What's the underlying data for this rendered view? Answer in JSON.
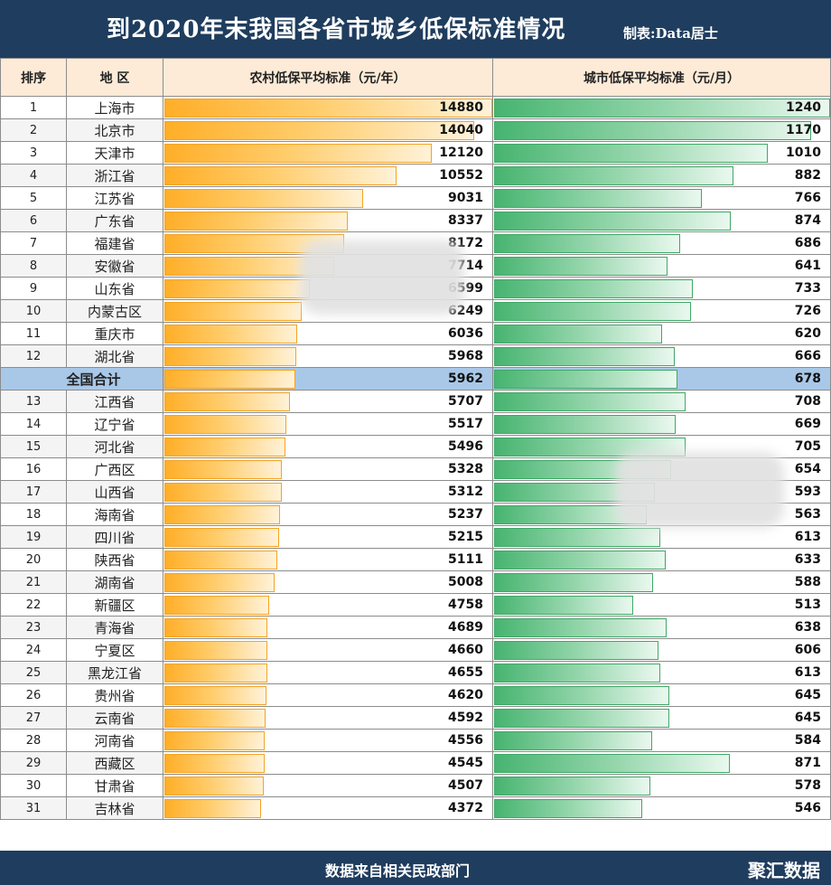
{
  "header": {
    "title": "到2020年末我国各省市城乡低保标准情况",
    "maker": "制表:Data居士"
  },
  "columns": {
    "rank": "排序",
    "region": "地 区",
    "rural": "农村低保平均标准（元/年）",
    "urban": "城市低保平均标准（元/月）"
  },
  "footer": {
    "source": "数据来自相关民政部门",
    "brand": "聚汇数据"
  },
  "colors": {
    "header_bg": "#1f3d5e",
    "column_header_bg": "#fdebd7",
    "rural_bar": "#ffae28",
    "urban_bar": "#47b470",
    "total_row": "#a9c8e8"
  },
  "chart_data": {
    "type": "table",
    "title": "到2020年末我国各省市城乡低保标准情况",
    "rural_max": 14880,
    "urban_max": 1240,
    "rows": [
      {
        "rank": "1",
        "name": "上海市",
        "rural": 14880,
        "urban": 1240
      },
      {
        "rank": "2",
        "name": "北京市",
        "rural": 14040,
        "urban": 1170
      },
      {
        "rank": "3",
        "name": "天津市",
        "rural": 12120,
        "urban": 1010
      },
      {
        "rank": "4",
        "name": "浙江省",
        "rural": 10552,
        "urban": 882
      },
      {
        "rank": "5",
        "name": "江苏省",
        "rural": 9031,
        "urban": 766
      },
      {
        "rank": "6",
        "name": "广东省",
        "rural": 8337,
        "urban": 874
      },
      {
        "rank": "7",
        "name": "福建省",
        "rural": 8172,
        "urban": 686
      },
      {
        "rank": "8",
        "name": "安徽省",
        "rural": 7714,
        "urban": 641
      },
      {
        "rank": "9",
        "name": "山东省",
        "rural": 6599,
        "urban": 733
      },
      {
        "rank": "10",
        "name": "内蒙古区",
        "rural": 6249,
        "urban": 726
      },
      {
        "rank": "11",
        "name": "重庆市",
        "rural": 6036,
        "urban": 620
      },
      {
        "rank": "12",
        "name": "湖北省",
        "rural": 5968,
        "urban": 666
      },
      {
        "rank": "",
        "name": "全国合计",
        "rural": 5962,
        "urban": 678,
        "total": true
      },
      {
        "rank": "13",
        "name": "江西省",
        "rural": 5707,
        "urban": 708
      },
      {
        "rank": "14",
        "name": "辽宁省",
        "rural": 5517,
        "urban": 669
      },
      {
        "rank": "15",
        "name": "河北省",
        "rural": 5496,
        "urban": 705
      },
      {
        "rank": "16",
        "name": "广西区",
        "rural": 5328,
        "urban": 654
      },
      {
        "rank": "17",
        "name": "山西省",
        "rural": 5312,
        "urban": 593
      },
      {
        "rank": "18",
        "name": "海南省",
        "rural": 5237,
        "urban": 563
      },
      {
        "rank": "19",
        "name": "四川省",
        "rural": 5215,
        "urban": 613
      },
      {
        "rank": "20",
        "name": "陕西省",
        "rural": 5111,
        "urban": 633
      },
      {
        "rank": "21",
        "name": "湖南省",
        "rural": 5008,
        "urban": 588
      },
      {
        "rank": "22",
        "name": "新疆区",
        "rural": 4758,
        "urban": 513
      },
      {
        "rank": "23",
        "name": "青海省",
        "rural": 4689,
        "urban": 638
      },
      {
        "rank": "24",
        "name": "宁夏区",
        "rural": 4660,
        "urban": 606
      },
      {
        "rank": "25",
        "name": "黑龙江省",
        "rural": 4655,
        "urban": 613
      },
      {
        "rank": "26",
        "name": "贵州省",
        "rural": 4620,
        "urban": 645
      },
      {
        "rank": "27",
        "name": "云南省",
        "rural": 4592,
        "urban": 645
      },
      {
        "rank": "28",
        "name": "河南省",
        "rural": 4556,
        "urban": 584
      },
      {
        "rank": "29",
        "name": "西藏区",
        "rural": 4545,
        "urban": 871
      },
      {
        "rank": "30",
        "name": "甘肃省",
        "rural": 4507,
        "urban": 578
      },
      {
        "rank": "31",
        "name": "吉林省",
        "rural": 4372,
        "urban": 546
      }
    ]
  }
}
